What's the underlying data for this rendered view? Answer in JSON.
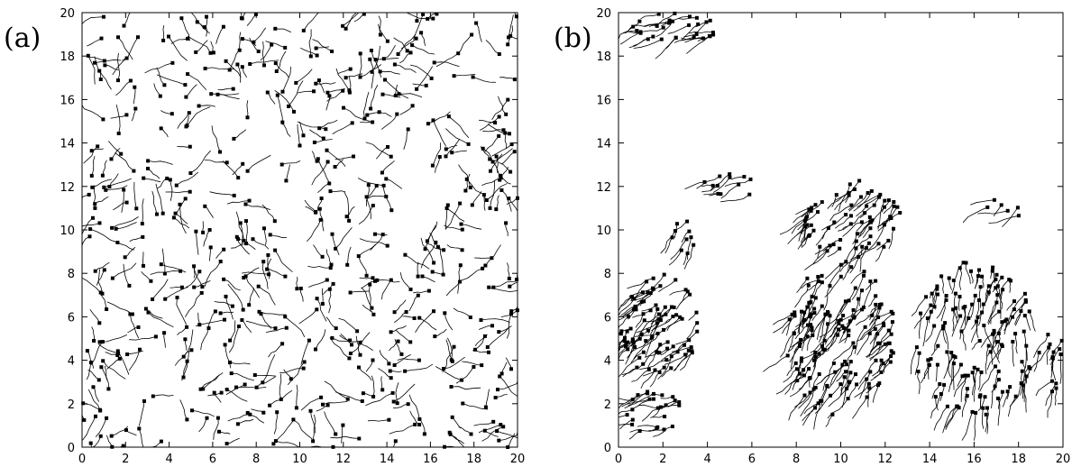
{
  "figure": {
    "panels": [
      {
        "label": "(a)"
      },
      {
        "label": "(b)"
      }
    ]
  },
  "chart_data": [
    {
      "type": "scatter",
      "title": "",
      "panel_label": "(a)",
      "xlabel": "",
      "ylabel": "",
      "xlim": [
        0,
        20
      ],
      "ylim": [
        0,
        20
      ],
      "xticks": [
        0,
        2,
        4,
        6,
        8,
        10,
        12,
        14,
        16,
        18,
        20
      ],
      "yticks": [
        0,
        2,
        4,
        6,
        8,
        10,
        12,
        14,
        16,
        18,
        20
      ],
      "grid": false,
      "legend": "none",
      "description_regions": [
        {
          "type": "uniform",
          "xlim": [
            0,
            20
          ],
          "ylim": [
            0,
            20
          ],
          "count": 560,
          "dir": 90,
          "spread": 360
        }
      ]
    },
    {
      "type": "scatter",
      "title": "",
      "panel_label": "(b)",
      "xlabel": "",
      "ylabel": "",
      "xlim": [
        0,
        20
      ],
      "ylim": [
        0,
        20
      ],
      "xticks": [
        0,
        2,
        4,
        6,
        8,
        10,
        12,
        14,
        16,
        18,
        20
      ],
      "yticks": [
        0,
        2,
        4,
        6,
        8,
        10,
        12,
        14,
        16,
        18,
        20
      ],
      "grid": false,
      "legend": "none",
      "description_regions": [
        {
          "type": "blob",
          "cx": 2.5,
          "cy": 19.2,
          "rx": 2.0,
          "ry": 0.8,
          "count": 30,
          "dir": 20
        },
        {
          "type": "blob",
          "cx": 1.8,
          "cy": 5.6,
          "rx": 1.8,
          "ry": 2.4,
          "count": 90,
          "dir": 40
        },
        {
          "type": "blob",
          "cx": 1.5,
          "cy": 1.6,
          "rx": 1.5,
          "ry": 1.0,
          "count": 25,
          "dir": 20
        },
        {
          "type": "blob",
          "cx": 10.0,
          "cy": 5.0,
          "rx": 2.5,
          "ry": 3.6,
          "count": 160,
          "dir": 55
        },
        {
          "type": "blob",
          "cx": 10.5,
          "cy": 10.5,
          "rx": 2.2,
          "ry": 1.8,
          "count": 70,
          "dir": 55
        },
        {
          "type": "blob",
          "cx": 16.0,
          "cy": 5.0,
          "rx": 2.8,
          "ry": 3.6,
          "count": 140,
          "dir": 80
        },
        {
          "type": "blob",
          "cx": 5.0,
          "cy": 12.0,
          "rx": 1.2,
          "ry": 0.6,
          "count": 12,
          "dir": 30
        },
        {
          "type": "blob",
          "cx": 17.5,
          "cy": 11.0,
          "rx": 1.0,
          "ry": 0.5,
          "count": 6,
          "dir": 30
        },
        {
          "type": "blob",
          "cx": 3.0,
          "cy": 9.5,
          "rx": 0.8,
          "ry": 1.0,
          "count": 10,
          "dir": 60
        },
        {
          "type": "blob",
          "cx": 19.5,
          "cy": 4.0,
          "rx": 0.6,
          "ry": 1.5,
          "count": 14,
          "dir": 70
        }
      ]
    }
  ]
}
